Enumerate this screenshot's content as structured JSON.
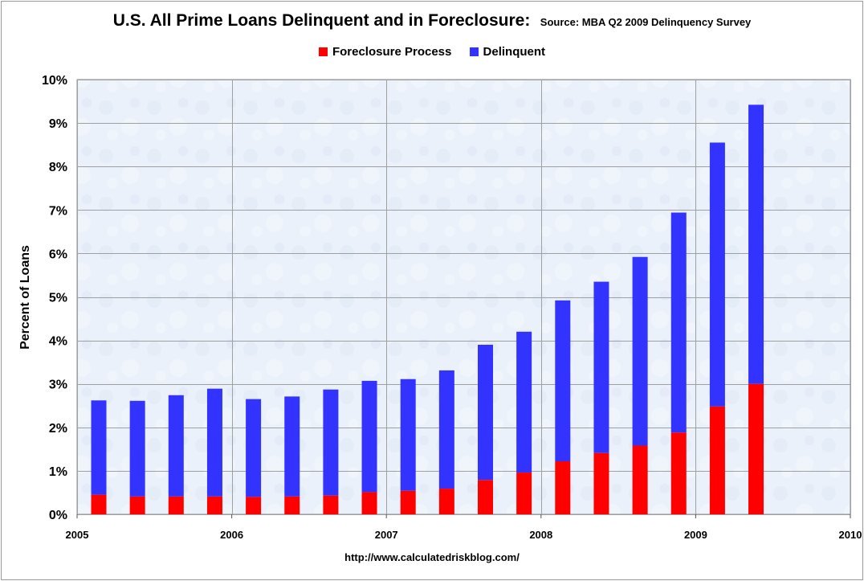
{
  "header": {
    "title": "U.S. All Prime Loans Delinquent and in Foreclosure:",
    "subtitle": "Source: MBA Q2 2009 Delinquency Survey"
  },
  "footer": {
    "url": "http://www.calculatedriskblog.com/"
  },
  "colors": {
    "foreclosure": "#ff0000",
    "delinquent": "#3333ff",
    "plot_background": "#eaf1fa",
    "grid": "#a0a0a0"
  },
  "chart_data": {
    "type": "bar",
    "stacked": true,
    "ylabel": "Percent of Loans",
    "xlabel": "",
    "ylim": [
      0,
      10
    ],
    "yticks": [
      "0%",
      "1%",
      "2%",
      "3%",
      "4%",
      "5%",
      "6%",
      "7%",
      "8%",
      "9%",
      "10%"
    ],
    "xticks": [
      "2005",
      "2006",
      "2007",
      "2008",
      "2009",
      "2010"
    ],
    "xlim": [
      2005,
      2010
    ],
    "grid": true,
    "legend_position": "top-center",
    "categories": [
      "2005 Q1",
      "2005 Q2",
      "2005 Q3",
      "2005 Q4",
      "2006 Q1",
      "2006 Q2",
      "2006 Q3",
      "2006 Q4",
      "2007 Q1",
      "2007 Q2",
      "2007 Q3",
      "2007 Q4",
      "2008 Q1",
      "2008 Q2",
      "2008 Q3",
      "2008 Q4",
      "2009 Q1",
      "2009 Q2"
    ],
    "series": [
      {
        "name": "Foreclosure Process",
        "values": [
          0.45,
          0.41,
          0.41,
          0.41,
          0.4,
          0.41,
          0.43,
          0.51,
          0.54,
          0.59,
          0.79,
          0.96,
          1.22,
          1.41,
          1.58,
          1.88,
          2.48,
          3.0
        ]
      },
      {
        "name": "Delinquent",
        "values": [
          2.17,
          2.2,
          2.33,
          2.48,
          2.25,
          2.3,
          2.44,
          2.56,
          2.57,
          2.72,
          3.11,
          3.24,
          3.7,
          3.94,
          4.34,
          5.06,
          6.07,
          6.42
        ]
      }
    ]
  }
}
